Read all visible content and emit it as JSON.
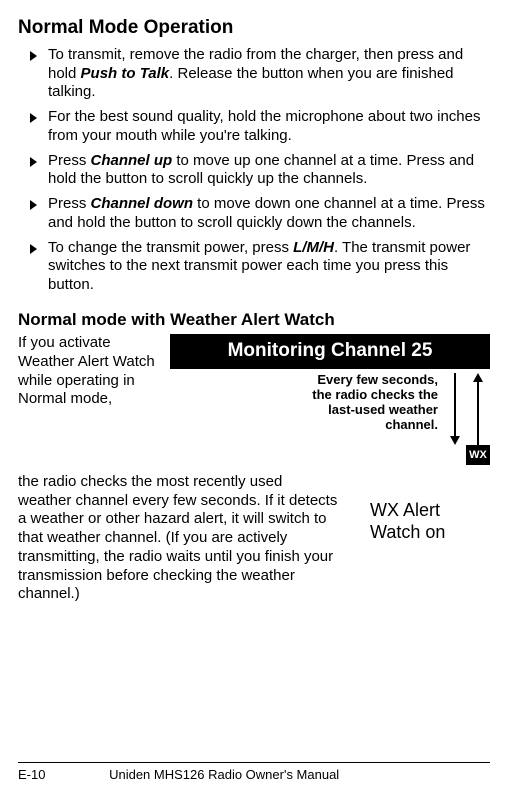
{
  "title": "Normal Mode Operation",
  "bullets": [
    {
      "pre": "To transmit, remove the radio from the charger, then press and hold ",
      "em": "Push to Talk",
      "post": ". Release the button when you are finished talking."
    },
    {
      "pre": "For the best sound quality, hold the microphone about two inches from your mouth while you're talking.",
      "em": "",
      "post": ""
    },
    {
      "pre": "Press ",
      "em": "Channel up",
      "post": " to move up one channel at a time. Press and hold the button to scroll quickly up the channels."
    },
    {
      "pre": "Press ",
      "em": "Channel down",
      "post": " to move down one channel at a time. Press and hold the button to scroll quickly down the channels."
    },
    {
      "pre": "To change the transmit power, press ",
      "em": "L/M/H",
      "post": ". The transmit power switches to the next transmit power each time you press this button."
    }
  ],
  "subheading": "Normal mode with Weather Alert Watch",
  "wx_narrow": "If you activate Weather Alert Watch while operating in Normal mode,",
  "wx_wide": "the radio checks the most recently used weather channel every few seconds. If it detects a weather or other hazard alert, it will switch to that weather channel. (If you are actively transmitting, the radio waits until you finish your transmission before checking the weather channel.)",
  "figure": {
    "bar": "Monitoring Channel 25",
    "caption": "Every few  seconds, the radio checks the last-used weather channel.",
    "wx_box": "WX",
    "alert_label": "WX Alert Watch on",
    "colors": {
      "bar_bg": "#000000",
      "bar_fg": "#ffffff"
    }
  },
  "footer": {
    "page": "E-10",
    "manual": "Uniden MHS126 Radio Owner's Manual"
  }
}
